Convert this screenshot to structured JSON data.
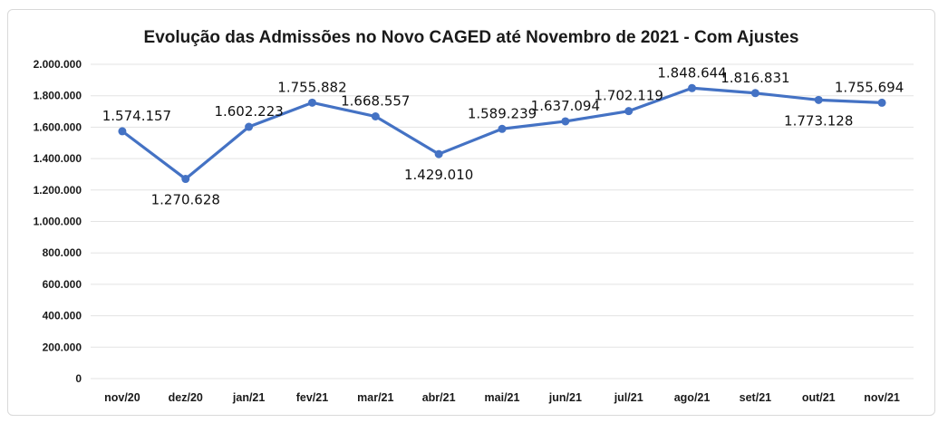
{
  "chart_data": {
    "type": "line",
    "title": "Evolução das Admissões no Novo CAGED até Novembro de 2021 - Com Ajustes",
    "categories": [
      "nov/20",
      "dez/20",
      "jan/21",
      "fev/21",
      "mar/21",
      "abr/21",
      "mai/21",
      "jun/21",
      "jul/21",
      "ago/21",
      "set/21",
      "out/21",
      "nov/21"
    ],
    "series": [
      {
        "values": [
          1574157,
          1270628,
          1602223,
          1755882,
          1668557,
          1429010,
          1589239,
          1637094,
          1702119,
          1848644,
          1816831,
          1773128,
          1755694
        ],
        "labels": [
          "1.574.157",
          "1.270.628",
          "1.602.223",
          "1.755.882",
          "1.668.557",
          "1.429.010",
          "1.589.239",
          "1.637.094",
          "1.702.119",
          "1.848.644",
          "1.816.831",
          "1.773.128",
          "1.755.694"
        ],
        "color": "#4472c4"
      }
    ],
    "ylim": [
      0,
      2000000
    ],
    "yticks": [
      0,
      200000,
      400000,
      600000,
      800000,
      1000000,
      1200000,
      1400000,
      1600000,
      1800000,
      2000000
    ],
    "ytick_labels": [
      "0",
      "200.000",
      "400.000",
      "600.000",
      "800.000",
      "1.000.000",
      "1.200.000",
      "1.400.000",
      "1.600.000",
      "1.800.000",
      "2.000.000"
    ],
    "grid": true,
    "legend": "none"
  }
}
